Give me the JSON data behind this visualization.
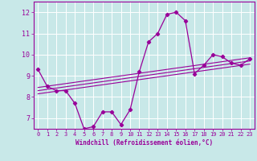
{
  "xlabel": "Windchill (Refroidissement éolien,°C)",
  "background_color": "#c8e8e8",
  "line_color": "#990099",
  "grid_color": "#ffffff",
  "hours": [
    0,
    1,
    2,
    3,
    4,
    5,
    6,
    7,
    8,
    9,
    10,
    11,
    12,
    13,
    14,
    15,
    16,
    17,
    18,
    19,
    20,
    21,
    22,
    23
  ],
  "windchill": [
    9.3,
    8.5,
    8.3,
    8.3,
    7.7,
    6.5,
    6.6,
    7.3,
    7.3,
    6.7,
    7.4,
    9.2,
    10.6,
    11.0,
    11.9,
    12.0,
    11.6,
    9.1,
    9.5,
    10.0,
    9.9,
    9.6,
    9.5,
    9.8
  ],
  "trend_lines": [
    [
      8.15,
      9.55
    ],
    [
      8.3,
      9.7
    ],
    [
      8.45,
      9.85
    ]
  ],
  "ylim": [
    6.5,
    12.5
  ],
  "yticks": [
    7,
    8,
    9,
    10,
    11,
    12
  ],
  "xlim": [
    -0.5,
    23.5
  ],
  "xticks": [
    0,
    1,
    2,
    3,
    4,
    5,
    6,
    7,
    8,
    9,
    10,
    11,
    12,
    13,
    14,
    15,
    16,
    17,
    18,
    19,
    20,
    21,
    22,
    23
  ]
}
